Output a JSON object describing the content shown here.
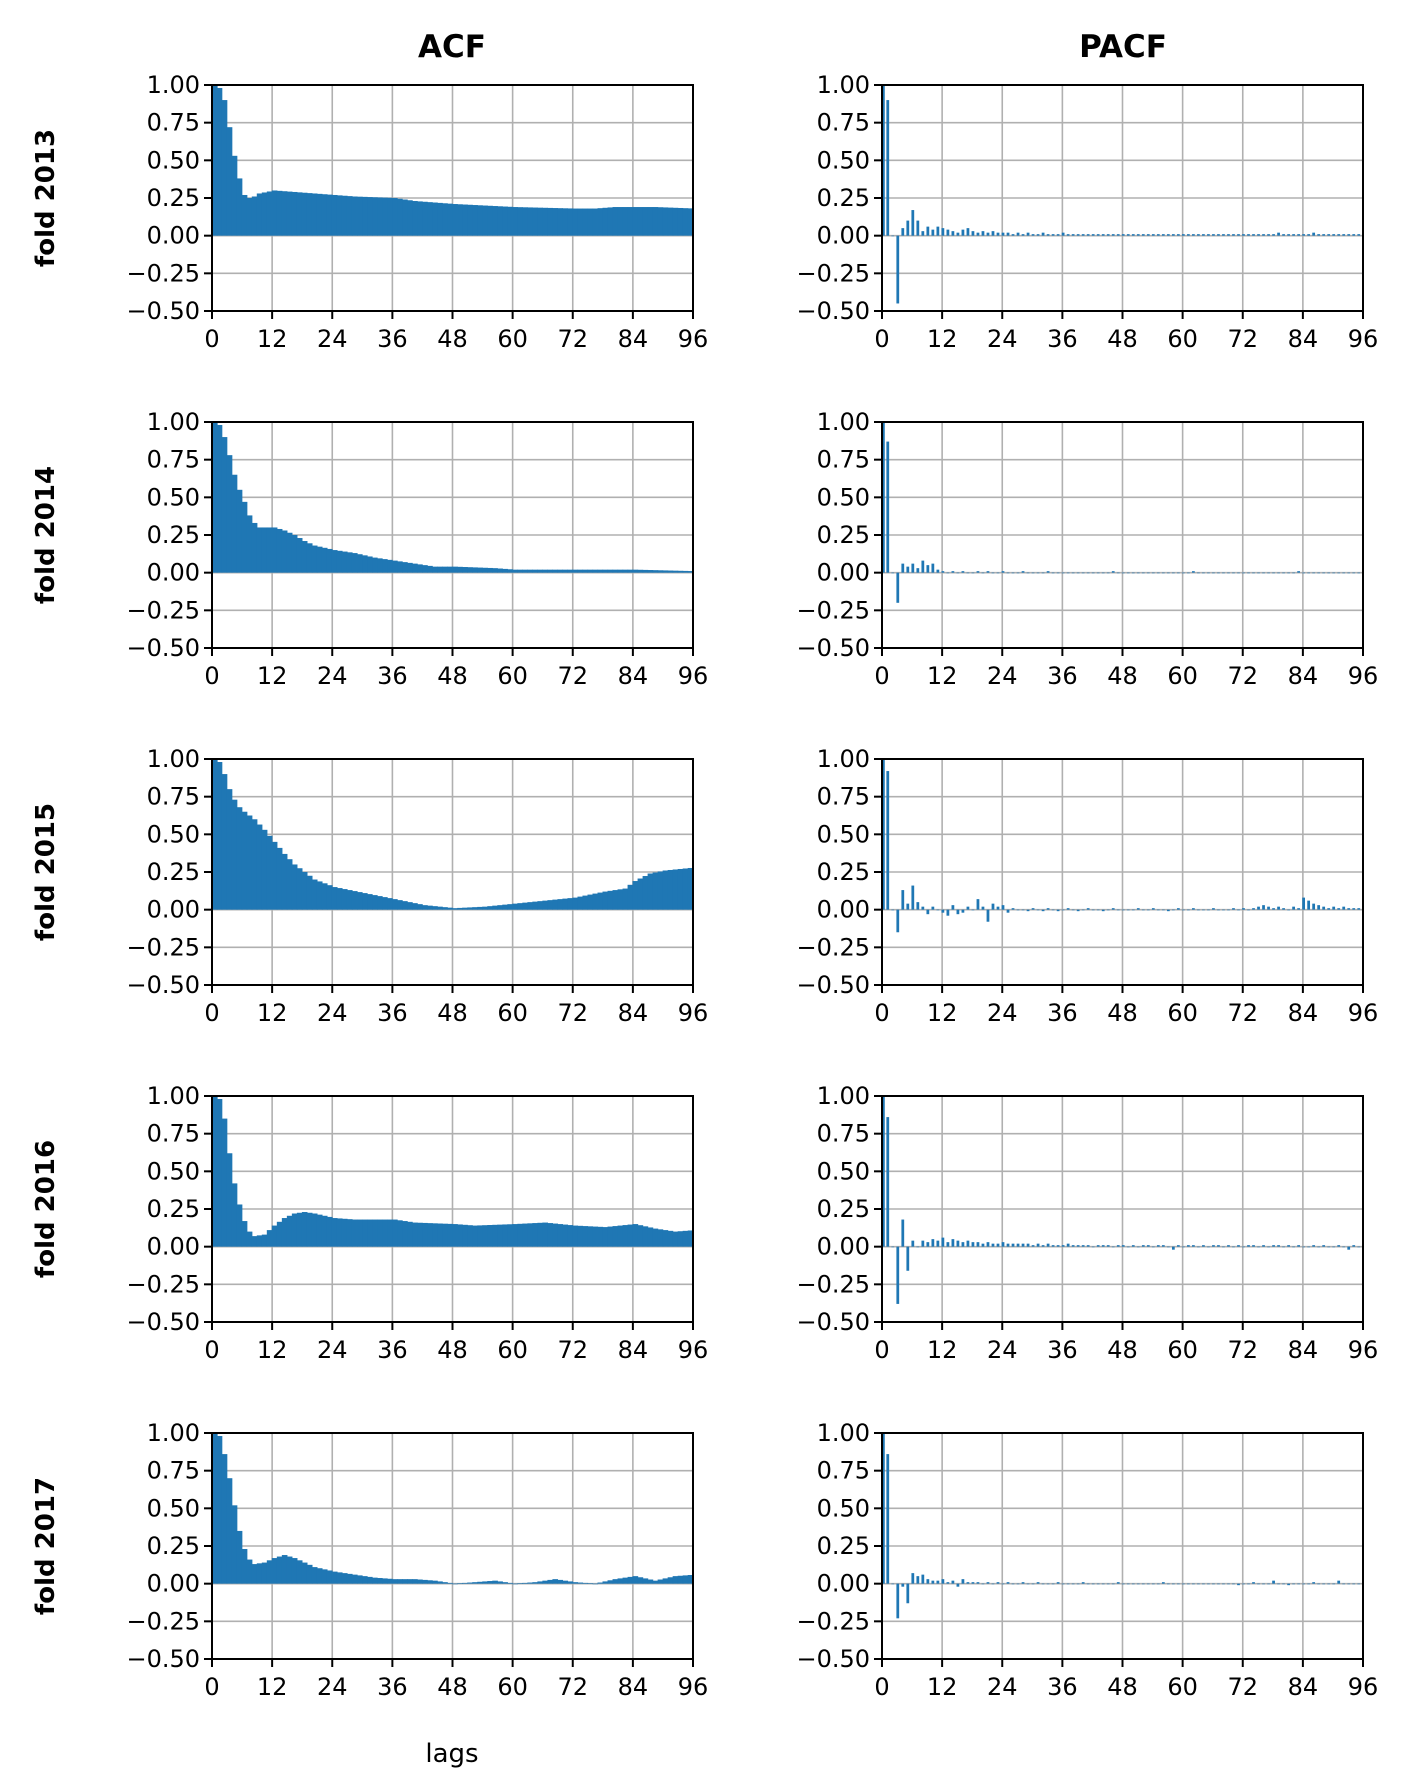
{
  "figure": {
    "column_titles": [
      "ACF",
      "PACF"
    ],
    "xlabel": "lags",
    "bar_color": "#1f77b4",
    "grid_color": "#b0b0b0"
  },
  "chart_data": [
    {
      "type": "bar",
      "row": 0,
      "col": 0,
      "row_label": "fold 2013",
      "title": "ACF",
      "xlim": [
        0,
        96
      ],
      "ylim": [
        -0.5,
        1.0
      ],
      "grid": true,
      "xticks": [
        0,
        12,
        24,
        36,
        48,
        60,
        72,
        84,
        96
      ],
      "yticks": [
        "-0.50",
        "-0.25",
        "0.00",
        "0.25",
        "0.50",
        "0.75",
        "1.00"
      ],
      "anchors": [
        [
          0,
          1.0
        ],
        [
          1,
          0.98
        ],
        [
          2,
          0.9
        ],
        [
          3,
          0.72
        ],
        [
          4,
          0.53
        ],
        [
          5,
          0.38
        ],
        [
          6,
          0.27
        ],
        [
          7,
          0.25
        ],
        [
          8,
          0.26
        ],
        [
          9,
          0.28
        ],
        [
          12,
          0.3
        ],
        [
          16,
          0.29
        ],
        [
          20,
          0.28
        ],
        [
          28,
          0.26
        ],
        [
          36,
          0.25
        ],
        [
          40,
          0.23
        ],
        [
          48,
          0.21
        ],
        [
          60,
          0.19
        ],
        [
          72,
          0.18
        ],
        [
          76,
          0.18
        ],
        [
          80,
          0.19
        ],
        [
          88,
          0.19
        ],
        [
          96,
          0.18
        ]
      ]
    },
    {
      "type": "bar",
      "row": 0,
      "col": 1,
      "row_label": "fold 2013",
      "title": "PACF",
      "xlim": [
        0,
        96
      ],
      "ylim": [
        -0.5,
        1.0
      ],
      "grid": true,
      "xticks": [
        0,
        12,
        24,
        36,
        48,
        60,
        72,
        84,
        96
      ],
      "yticks": [
        "-0.50",
        "-0.25",
        "0.00",
        "0.25",
        "0.50",
        "0.75",
        "1.00"
      ],
      "values": [
        1.0,
        0.9,
        0.0,
        -0.45,
        0.05,
        0.1,
        0.17,
        0.1,
        0.03,
        0.06,
        0.04,
        0.06,
        0.05,
        0.04,
        0.03,
        0.02,
        0.04,
        0.05,
        0.03,
        0.02,
        0.03,
        0.02,
        0.03,
        0.02,
        0.02,
        0.02,
        0.01,
        0.02,
        0.01,
        0.02,
        0.01,
        0.01,
        0.02,
        0.01,
        0.01,
        0.01,
        0.02,
        0.01,
        0.01,
        0.01,
        0.01,
        0.01,
        0.01,
        0.01,
        0.01,
        0.01,
        0.01,
        0.01,
        0.01,
        0.01,
        0.01,
        0.01,
        0.01,
        0.01,
        0.01,
        0.01,
        0.01,
        0.01,
        0.01,
        0.01,
        0.01,
        0.01,
        0.01,
        0.01,
        0.01,
        0.01,
        0.01,
        0.01,
        0.01,
        0.01,
        0.01,
        0.01,
        0.01,
        0.01,
        0.01,
        0.01,
        0.01,
        0.01,
        0.01,
        0.02,
        0.01,
        0.01,
        0.01,
        0.01,
        0.01,
        0.01,
        0.02,
        0.01,
        0.01,
        0.01,
        0.01,
        0.01,
        0.01,
        0.01,
        0.01,
        0.01
      ]
    },
    {
      "type": "bar",
      "row": 1,
      "col": 0,
      "row_label": "fold 2014",
      "title": "ACF",
      "xlim": [
        0,
        96
      ],
      "ylim": [
        -0.5,
        1.0
      ],
      "grid": true,
      "xticks": [
        0,
        12,
        24,
        36,
        48,
        60,
        72,
        84,
        96
      ],
      "yticks": [
        "-0.50",
        "-0.25",
        "0.00",
        "0.25",
        "0.50",
        "0.75",
        "1.00"
      ],
      "anchors": [
        [
          0,
          1.0
        ],
        [
          1,
          0.98
        ],
        [
          2,
          0.9
        ],
        [
          3,
          0.78
        ],
        [
          4,
          0.65
        ],
        [
          5,
          0.55
        ],
        [
          6,
          0.47
        ],
        [
          7,
          0.38
        ],
        [
          8,
          0.33
        ],
        [
          9,
          0.3
        ],
        [
          10,
          0.3
        ],
        [
          12,
          0.3
        ],
        [
          14,
          0.28
        ],
        [
          16,
          0.25
        ],
        [
          18,
          0.21
        ],
        [
          20,
          0.18
        ],
        [
          24,
          0.15
        ],
        [
          28,
          0.13
        ],
        [
          32,
          0.1
        ],
        [
          36,
          0.08
        ],
        [
          40,
          0.06
        ],
        [
          44,
          0.04
        ],
        [
          48,
          0.04
        ],
        [
          56,
          0.03
        ],
        [
          60,
          0.02
        ],
        [
          72,
          0.02
        ],
        [
          84,
          0.02
        ],
        [
          96,
          0.01
        ]
      ]
    },
    {
      "type": "bar",
      "row": 1,
      "col": 1,
      "row_label": "fold 2014",
      "title": "PACF",
      "xlim": [
        0,
        96
      ],
      "ylim": [
        -0.5,
        1.0
      ],
      "grid": true,
      "xticks": [
        0,
        12,
        24,
        36,
        48,
        60,
        72,
        84,
        96
      ],
      "yticks": [
        "-0.50",
        "-0.25",
        "0.00",
        "0.25",
        "0.50",
        "0.75",
        "1.00"
      ],
      "values": [
        1.0,
        0.87,
        0.0,
        -0.2,
        0.06,
        0.04,
        0.06,
        0.03,
        0.08,
        0.05,
        0.06,
        0.02,
        0.01,
        0.0,
        0.01,
        0.0,
        0.01,
        0.0,
        0.0,
        0.01,
        0.0,
        0.01,
        0.0,
        0.0,
        0.01,
        0.0,
        0.0,
        0.0,
        0.01,
        0.0,
        0.0,
        0.0,
        0.0,
        0.01,
        0.0,
        0.0,
        0.0,
        0.0,
        0.0,
        0.0,
        0.0,
        0.0,
        0.0,
        0.0,
        0.0,
        0.0,
        0.01,
        0.0,
        0.0,
        0.0,
        0.0,
        0.0,
        0.0,
        0.0,
        0.0,
        0.0,
        0.0,
        0.0,
        0.0,
        0.0,
        0.0,
        0.0,
        0.01,
        0.0,
        0.0,
        0.0,
        0.0,
        0.0,
        0.0,
        0.0,
        0.0,
        0.0,
        0.0,
        0.0,
        0.0,
        0.0,
        0.0,
        0.0,
        0.0,
        0.0,
        0.0,
        0.0,
        0.0,
        0.01,
        0.0,
        0.0,
        0.0,
        0.0,
        0.0,
        0.0,
        0.0,
        0.0,
        0.0,
        0.0,
        0.0,
        0.0
      ]
    },
    {
      "type": "bar",
      "row": 2,
      "col": 0,
      "row_label": "fold 2015",
      "title": "ACF",
      "xlim": [
        0,
        96
      ],
      "ylim": [
        -0.5,
        1.0
      ],
      "grid": true,
      "xticks": [
        0,
        12,
        24,
        36,
        48,
        60,
        72,
        84,
        96
      ],
      "yticks": [
        "-0.50",
        "-0.25",
        "0.00",
        "0.25",
        "0.50",
        "0.75",
        "1.00"
      ],
      "anchors": [
        [
          0,
          1.0
        ],
        [
          1,
          0.98
        ],
        [
          2,
          0.9
        ],
        [
          3,
          0.8
        ],
        [
          4,
          0.73
        ],
        [
          5,
          0.68
        ],
        [
          6,
          0.65
        ],
        [
          8,
          0.6
        ],
        [
          10,
          0.53
        ],
        [
          12,
          0.45
        ],
        [
          14,
          0.37
        ],
        [
          16,
          0.3
        ],
        [
          18,
          0.25
        ],
        [
          20,
          0.2
        ],
        [
          24,
          0.15
        ],
        [
          30,
          0.11
        ],
        [
          36,
          0.07
        ],
        [
          42,
          0.03
        ],
        [
          48,
          0.01
        ],
        [
          54,
          0.02
        ],
        [
          60,
          0.04
        ],
        [
          66,
          0.06
        ],
        [
          72,
          0.08
        ],
        [
          78,
          0.12
        ],
        [
          82,
          0.14
        ],
        [
          84,
          0.19
        ],
        [
          87,
          0.24
        ],
        [
          90,
          0.26
        ],
        [
          96,
          0.28
        ]
      ]
    },
    {
      "type": "bar",
      "row": 2,
      "col": 1,
      "row_label": "fold 2015",
      "title": "PACF",
      "xlim": [
        0,
        96
      ],
      "ylim": [
        -0.5,
        1.0
      ],
      "grid": true,
      "xticks": [
        0,
        12,
        24,
        36,
        48,
        60,
        72,
        84,
        96
      ],
      "yticks": [
        "-0.50",
        "-0.25",
        "0.00",
        "0.25",
        "0.50",
        "0.75",
        "1.00"
      ],
      "values": [
        1.0,
        0.92,
        0.0,
        -0.15,
        0.13,
        0.04,
        0.16,
        0.05,
        0.02,
        -0.03,
        0.02,
        0.0,
        -0.02,
        -0.04,
        0.03,
        -0.03,
        -0.02,
        0.02,
        0.0,
        0.07,
        0.02,
        -0.08,
        0.04,
        0.02,
        0.03,
        -0.02,
        0.01,
        0.0,
        0.0,
        -0.01,
        0.01,
        0.0,
        -0.01,
        0.01,
        0.0,
        -0.01,
        0.0,
        0.01,
        0.0,
        -0.01,
        0.0,
        0.01,
        0.0,
        0.0,
        -0.01,
        0.0,
        0.01,
        0.0,
        0.0,
        0.0,
        0.0,
        0.01,
        0.0,
        0.0,
        0.01,
        0.0,
        0.0,
        -0.01,
        0.0,
        0.01,
        0.0,
        0.0,
        0.01,
        0.0,
        0.0,
        0.0,
        0.01,
        0.0,
        0.0,
        0.0,
        0.01,
        0.0,
        0.01,
        0.0,
        0.01,
        0.02,
        0.03,
        0.02,
        0.01,
        0.02,
        0.01,
        0.0,
        0.02,
        0.01,
        0.08,
        0.06,
        0.04,
        0.03,
        0.02,
        0.01,
        0.02,
        0.01,
        0.02,
        0.01,
        0.01,
        0.01
      ]
    },
    {
      "type": "bar",
      "row": 3,
      "col": 0,
      "row_label": "fold 2016",
      "title": "ACF",
      "xlim": [
        0,
        96
      ],
      "ylim": [
        -0.5,
        1.0
      ],
      "grid": true,
      "xticks": [
        0,
        12,
        24,
        36,
        48,
        60,
        72,
        84,
        96
      ],
      "yticks": [
        "-0.50",
        "-0.25",
        "0.00",
        "0.25",
        "0.50",
        "0.75",
        "1.00"
      ],
      "anchors": [
        [
          0,
          1.0
        ],
        [
          1,
          0.98
        ],
        [
          2,
          0.85
        ],
        [
          3,
          0.62
        ],
        [
          4,
          0.42
        ],
        [
          5,
          0.28
        ],
        [
          6,
          0.17
        ],
        [
          7,
          0.1
        ],
        [
          8,
          0.07
        ],
        [
          10,
          0.08
        ],
        [
          12,
          0.14
        ],
        [
          14,
          0.19
        ],
        [
          16,
          0.22
        ],
        [
          18,
          0.23
        ],
        [
          20,
          0.22
        ],
        [
          24,
          0.19
        ],
        [
          28,
          0.18
        ],
        [
          36,
          0.18
        ],
        [
          40,
          0.16
        ],
        [
          48,
          0.15
        ],
        [
          52,
          0.14
        ],
        [
          60,
          0.15
        ],
        [
          66,
          0.16
        ],
        [
          72,
          0.14
        ],
        [
          78,
          0.13
        ],
        [
          84,
          0.15
        ],
        [
          88,
          0.12
        ],
        [
          92,
          0.1
        ],
        [
          96,
          0.11
        ]
      ]
    },
    {
      "type": "bar",
      "row": 3,
      "col": 1,
      "row_label": "fold 2016",
      "title": "PACF",
      "xlim": [
        0,
        96
      ],
      "ylim": [
        -0.5,
        1.0
      ],
      "grid": true,
      "xticks": [
        0,
        12,
        24,
        36,
        48,
        60,
        72,
        84,
        96
      ],
      "yticks": [
        "-0.50",
        "-0.25",
        "0.00",
        "0.25",
        "0.50",
        "0.75",
        "1.00"
      ],
      "values": [
        1.0,
        0.86,
        0.0,
        -0.38,
        0.18,
        -0.16,
        0.04,
        0.0,
        0.04,
        0.03,
        0.05,
        0.04,
        0.06,
        0.03,
        0.05,
        0.04,
        0.03,
        0.04,
        0.03,
        0.03,
        0.02,
        0.03,
        0.02,
        0.02,
        0.03,
        0.02,
        0.02,
        0.02,
        0.02,
        0.02,
        0.01,
        0.02,
        0.01,
        0.02,
        0.01,
        0.01,
        0.01,
        0.02,
        0.01,
        0.01,
        0.01,
        0.01,
        0.0,
        0.01,
        0.01,
        0.01,
        0.0,
        0.01,
        0.01,
        0.0,
        0.01,
        0.0,
        0.01,
        0.01,
        0.0,
        0.01,
        0.01,
        0.0,
        -0.02,
        0.01,
        0.0,
        0.01,
        0.01,
        0.0,
        0.01,
        0.0,
        0.01,
        0.01,
        0.0,
        0.01,
        0.0,
        0.01,
        0.0,
        0.01,
        0.01,
        0.0,
        0.01,
        0.0,
        0.01,
        0.01,
        0.0,
        0.01,
        0.0,
        0.01,
        0.0,
        0.0,
        0.01,
        0.0,
        0.01,
        0.0,
        0.0,
        0.01,
        0.0,
        -0.02,
        0.01,
        0.0
      ]
    },
    {
      "type": "bar",
      "row": 4,
      "col": 0,
      "row_label": "fold 2017",
      "title": "ACF",
      "xlim": [
        0,
        96
      ],
      "ylim": [
        -0.5,
        1.0
      ],
      "grid": true,
      "xticks": [
        0,
        12,
        24,
        36,
        48,
        60,
        72,
        84,
        96
      ],
      "yticks": [
        "-0.50",
        "-0.25",
        "0.00",
        "0.25",
        "0.50",
        "0.75",
        "1.00"
      ],
      "anchors": [
        [
          0,
          1.0
        ],
        [
          1,
          0.98
        ],
        [
          2,
          0.86
        ],
        [
          3,
          0.7
        ],
        [
          4,
          0.52
        ],
        [
          5,
          0.35
        ],
        [
          6,
          0.23
        ],
        [
          7,
          0.16
        ],
        [
          8,
          0.13
        ],
        [
          10,
          0.14
        ],
        [
          12,
          0.17
        ],
        [
          14,
          0.19
        ],
        [
          16,
          0.17
        ],
        [
          18,
          0.14
        ],
        [
          20,
          0.11
        ],
        [
          24,
          0.08
        ],
        [
          28,
          0.06
        ],
        [
          32,
          0.04
        ],
        [
          36,
          0.03
        ],
        [
          40,
          0.03
        ],
        [
          44,
          0.02
        ],
        [
          48,
          0.0
        ],
        [
          52,
          0.01
        ],
        [
          56,
          0.02
        ],
        [
          60,
          0.0
        ],
        [
          64,
          0.01
        ],
        [
          68,
          0.03
        ],
        [
          72,
          0.01
        ],
        [
          76,
          0.0
        ],
        [
          80,
          0.03
        ],
        [
          84,
          0.05
        ],
        [
          88,
          0.02
        ],
        [
          92,
          0.05
        ],
        [
          96,
          0.06
        ]
      ]
    },
    {
      "type": "bar",
      "row": 4,
      "col": 1,
      "row_label": "fold 2017",
      "title": "PACF",
      "xlim": [
        0,
        96
      ],
      "ylim": [
        -0.5,
        1.0
      ],
      "grid": true,
      "xticks": [
        0,
        12,
        24,
        36,
        48,
        60,
        72,
        84,
        96
      ],
      "yticks": [
        "-0.50",
        "-0.25",
        "0.00",
        "0.25",
        "0.50",
        "0.75",
        "1.00"
      ],
      "values": [
        1.0,
        0.86,
        0.0,
        -0.23,
        -0.02,
        -0.13,
        0.07,
        0.05,
        0.06,
        0.03,
        0.02,
        0.02,
        0.03,
        0.01,
        0.02,
        -0.02,
        0.03,
        0.01,
        0.01,
        0.01,
        0.0,
        0.01,
        0.0,
        0.01,
        0.0,
        0.01,
        0.0,
        0.0,
        0.01,
        0.0,
        0.0,
        0.01,
        0.0,
        0.0,
        0.0,
        0.01,
        0.0,
        0.0,
        0.0,
        0.0,
        0.01,
        0.0,
        0.0,
        0.0,
        0.0,
        0.0,
        0.0,
        0.01,
        0.0,
        0.0,
        0.0,
        0.0,
        0.0,
        0.0,
        0.0,
        0.0,
        0.01,
        0.0,
        0.0,
        0.0,
        0.0,
        0.0,
        0.0,
        0.0,
        0.0,
        0.0,
        0.0,
        0.0,
        0.0,
        0.0,
        0.0,
        -0.01,
        0.0,
        0.0,
        0.01,
        0.0,
        0.0,
        0.0,
        0.02,
        0.0,
        0.0,
        -0.01,
        0.0,
        0.0,
        0.0,
        0.0,
        0.01,
        0.0,
        0.0,
        0.0,
        0.0,
        0.02,
        0.0,
        0.0,
        0.0,
        0.0
      ]
    }
  ]
}
